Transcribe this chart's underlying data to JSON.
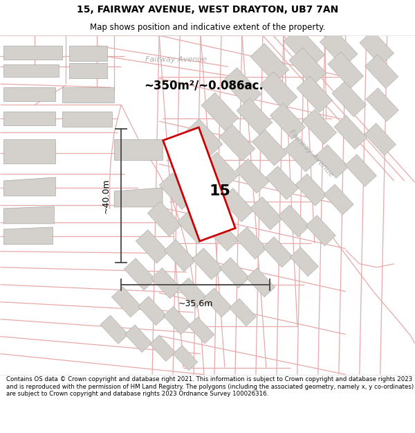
{
  "title": "15, FAIRWAY AVENUE, WEST DRAYTON, UB7 7AN",
  "subtitle": "Map shows position and indicative extent of the property.",
  "area_text": "~350m²/~0.086ac.",
  "plot_number": "15",
  "dim_width": "~35.6m",
  "dim_height": "~40.0m",
  "footer": "Contains OS data © Crown copyright and database right 2021. This information is subject to Crown copyright and database rights 2023 and is reproduced with the permission of HM Land Registry. The polygons (including the associated geometry, namely x, y co-ordinates) are subject to Crown copyright and database rights 2023 Ordnance Survey 100026316.",
  "title_fontsize": 10,
  "subtitle_fontsize": 8.5,
  "area_fontsize": 12,
  "footer_fontsize": 6.2,
  "map_bg": "#f5f0ee",
  "building_color": "#d4d0cc",
  "road_line_color": "#e8a8a8",
  "highlight_color": "#cc0000",
  "dim_color": "#444444",
  "street_color": "#b0b0b0",
  "white": "#ffffff",
  "figsize": [
    6.0,
    6.25
  ],
  "dpi": 100,
  "street_upper": "Fairway Avenue",
  "street_diag": "Fairway Avenue"
}
